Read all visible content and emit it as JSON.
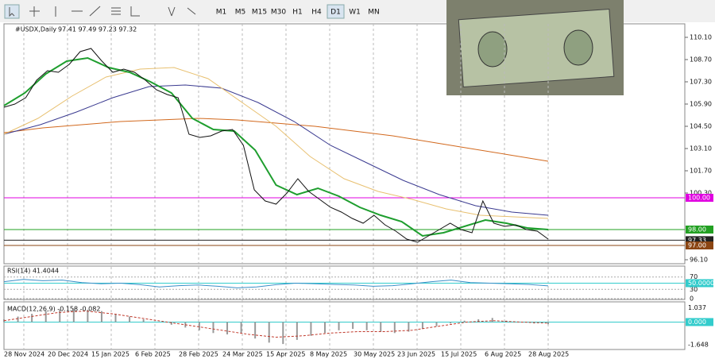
{
  "toolbar": {
    "timeframes": [
      "M1",
      "M5",
      "M15",
      "M30",
      "H1",
      "H4",
      "D1",
      "W1",
      "MN"
    ],
    "active": "D1"
  },
  "chart_data": {
    "type": "line",
    "title": "#USDX,Daily",
    "quote": "97.41 97.49 97.23 97.32",
    "xticks": [
      "28 Nov 2024",
      "20 Dec 2024",
      "15 Jan 2025",
      "6 Feb 2025",
      "28 Feb 2025",
      "24 Mar 2025",
      "15 Apr 2025",
      "8 May 2025",
      "30 May 2025",
      "23 Jun 2025",
      "15 Jul 2025",
      "6 Aug 2025",
      "28 Aug 2025"
    ],
    "ylim": [
      95.85,
      110.95
    ],
    "yticks": [
      {
        "value": 110.1,
        "label": "110.10"
      },
      {
        "value": 108.7,
        "label": "108.70"
      },
      {
        "value": 107.3,
        "label": "107.30"
      },
      {
        "value": 105.9,
        "label": "105.90"
      },
      {
        "value": 104.5,
        "label": "104.50"
      },
      {
        "value": 103.1,
        "label": "103.10"
      },
      {
        "value": 101.7,
        "label": "101.70"
      },
      {
        "value": 100.3,
        "label": "100.30"
      },
      {
        "value": 96.1,
        "label": "96.10"
      }
    ],
    "levels": [
      {
        "value": 100,
        "label": "100.00",
        "color": "#e000e0"
      },
      {
        "value": 98,
        "label": "98.00",
        "color": "#22a022"
      },
      {
        "value": 97.33,
        "label": "97.33",
        "color": "#222222"
      },
      {
        "value": 97,
        "label": "97.00",
        "color": "#8b4513"
      }
    ],
    "series": [
      {
        "name": "Close",
        "color": "#111111",
        "values": [
          105.7,
          105.9,
          106.3,
          107.4,
          108.0,
          107.9,
          108.4,
          109.2,
          109.4,
          108.6,
          107.9,
          108.1,
          107.9,
          107.4,
          106.8,
          106.5,
          106.3,
          104.0,
          103.8,
          103.9,
          104.2,
          104.3,
          103.3,
          100.5,
          99.8,
          99.6,
          100.3,
          101.2,
          100.4,
          99.9,
          99.4,
          99.1,
          98.7,
          98.4,
          98.9,
          98.3,
          97.9,
          97.4,
          97.2,
          97.6,
          98.0,
          98.4,
          98.0,
          97.8,
          99.8,
          98.4,
          98.2,
          98.3,
          98.0,
          97.9,
          97.4
        ]
      },
      {
        "name": "EMA",
        "color": "#1e9e2e",
        "values": [
          105.8,
          106.6,
          107.8,
          108.6,
          108.8,
          108.2,
          107.9,
          107.3,
          106.6,
          105.0,
          104.3,
          104.2,
          103.0,
          100.8,
          100.2,
          100.6,
          100.1,
          99.4,
          98.9,
          98.5,
          97.6,
          97.8,
          98.2,
          98.6,
          98.4,
          98.1,
          98.0
        ]
      },
      {
        "name": "MA50",
        "color": "#e8c070",
        "values": [
          104.0,
          105.0,
          106.4,
          107.6,
          108.1,
          108.2,
          107.5,
          106.0,
          104.5,
          102.6,
          101.2,
          100.4,
          99.9,
          99.3,
          98.9,
          98.8,
          98.7
        ]
      },
      {
        "name": "MA100",
        "color": "#3a3a90",
        "values": [
          104.0,
          104.6,
          105.4,
          106.3,
          107.0,
          107.1,
          106.9,
          106.0,
          104.8,
          103.3,
          102.2,
          101.1,
          100.2,
          99.5,
          99.1,
          98.9
        ]
      },
      {
        "name": "MA200",
        "color": "#d2691e",
        "values": [
          104.1,
          104.4,
          104.6,
          104.8,
          104.9,
          105.0,
          104.9,
          104.7,
          104.5,
          104.2,
          103.9,
          103.5,
          103.1,
          102.7,
          102.3
        ]
      }
    ]
  },
  "rsi": {
    "title": "RSI(14) 41.4044",
    "ylim": [
      0,
      100
    ],
    "yticks": [
      70,
      30,
      0
    ],
    "level": {
      "value": 50,
      "label": "50.0000"
    },
    "color": "#3a8fc8",
    "values": [
      55,
      62,
      58,
      60,
      52,
      48,
      50,
      45,
      38,
      42,
      44,
      40,
      35,
      38,
      45,
      50,
      48,
      46,
      44,
      40,
      42,
      48,
      55,
      60,
      52,
      50,
      48,
      46,
      41.4
    ]
  },
  "macd": {
    "title": "MACD(12,26,9) -0.158 -0.082",
    "ylim": [
      -2.0,
      1.3
    ],
    "yticks": [
      1.037,
      {
        "value": 0,
        "label": "0.000"
      },
      -1.648
    ],
    "histogram": [
      0.2,
      0.4,
      0.6,
      0.8,
      0.9,
      1.0,
      0.9,
      0.8,
      0.6,
      0.4,
      0.2,
      0.0,
      -0.2,
      -0.4,
      -0.6,
      -0.8,
      -0.9,
      -0.8,
      -1.2,
      -1.5,
      -1.6,
      -1.3,
      -1.0,
      -0.8,
      -0.6,
      -0.5,
      -0.6,
      -0.7,
      -0.8,
      -0.7,
      -0.5,
      -0.3,
      -0.1,
      0.1,
      0.2,
      0.3,
      0.1,
      0.0,
      -0.1,
      -0.16
    ],
    "signal": [
      0.1,
      0.4,
      0.7,
      0.8,
      0.6,
      0.3,
      0.0,
      -0.3,
      -0.6,
      -0.9,
      -1.1,
      -1.0,
      -0.8,
      -0.7,
      -0.7,
      -0.6,
      -0.3,
      0.0,
      0.1,
      0.0,
      -0.08
    ]
  }
}
